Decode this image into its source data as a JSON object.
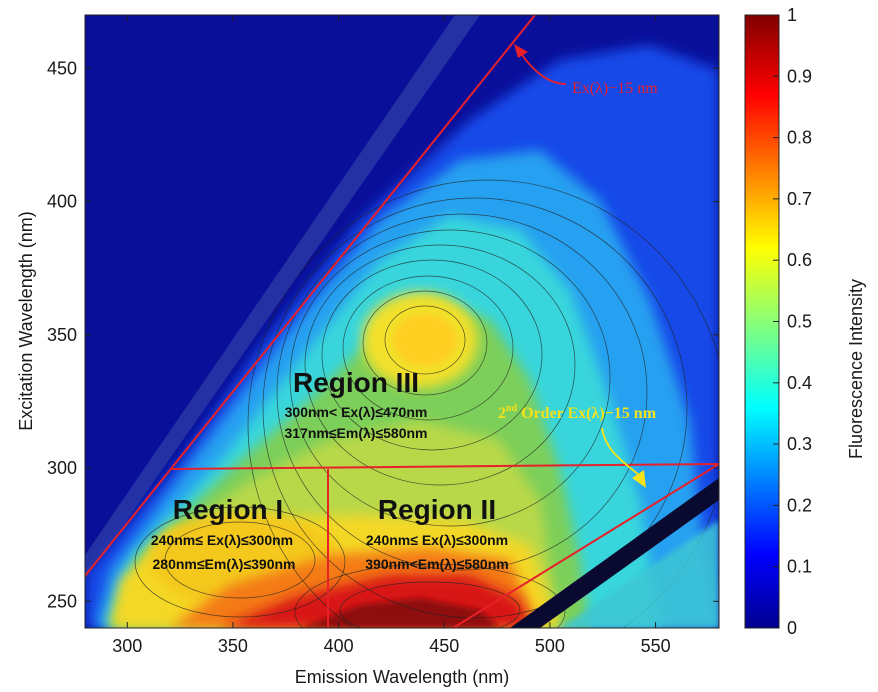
{
  "chart_data": {
    "type": "heatmap",
    "xlabel": "Emission Wavelength (nm)",
    "ylabel": "Excitation Wavelength (nm)",
    "colorbar_label": "Fluorescence Intensity",
    "xlim": [
      280,
      580
    ],
    "ylim": [
      240,
      470
    ],
    "xticks": [
      300,
      350,
      400,
      450,
      500,
      550
    ],
    "yticks": [
      250,
      300,
      350,
      400,
      450
    ],
    "colorbar_range": [
      0,
      1
    ],
    "colorbar_ticks": [
      0,
      0.1,
      0.2,
      0.3,
      0.4,
      0.5,
      0.6,
      0.7,
      0.8,
      0.9,
      1
    ],
    "colormap": "jet",
    "peaks": [
      {
        "em": 435,
        "ex": 345,
        "intensity": 0.65
      },
      {
        "em": 330,
        "ex": 265,
        "intensity": 0.55
      },
      {
        "em": 445,
        "ex": 262,
        "intensity": 1.0
      }
    ],
    "regions": [
      {
        "name": "Region I",
        "ex_range": "240nm≤ Ex(λ)≤300nm",
        "em_range": "280nm≤Em(λ)≤390nm"
      },
      {
        "name": "Region II",
        "ex_range": "240nm≤ Ex(λ)≤300nm",
        "em_range": "390nm<Em(λ)≤580nm"
      },
      {
        "name": "Region III",
        "ex_range": "300nm< Ex(λ)≤470nm",
        "em_range": "317nm≤Em(λ)≤580nm"
      }
    ],
    "annotations": {
      "first_order_line": "Ex(λ)−15 nm",
      "second_order_prefix": "2",
      "second_order_sup": "nd",
      "second_order_rest": " Order Ex(λ)−15 nm"
    },
    "colors": {
      "boundary": "#e8202a",
      "second_order_text": "#f5e21a",
      "first_order_text": "#e8202a"
    }
  }
}
